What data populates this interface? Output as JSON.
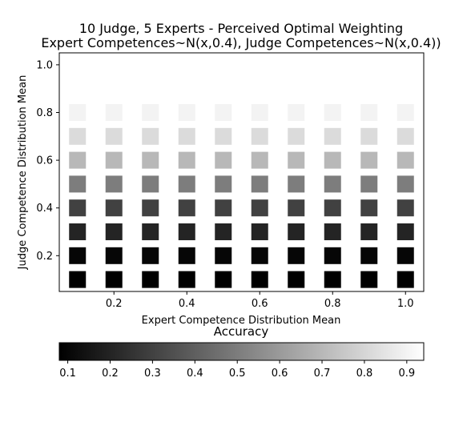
{
  "chart_data": {
    "type": "heatmap",
    "title": [
      "10 Judge, 5 Experts - Perceived Optimal Weighting",
      "Expert Competences~N(x,0.4), Judge Competences~N(x,0.4))"
    ],
    "xlabel": "Expert Competence Distribution Mean",
    "ylabel": "Judge Competence Distribution Mean",
    "x": [
      0.1,
      0.2,
      0.3,
      0.4,
      0.5,
      0.6,
      0.7,
      0.8,
      0.9,
      1.0
    ],
    "y": [
      0.1,
      0.2,
      0.3,
      0.4,
      0.5,
      0.6,
      0.7,
      0.8,
      0.9,
      1.0
    ],
    "xlim": [
      0.05,
      1.05
    ],
    "ylim": [
      0.05,
      1.05
    ],
    "xticks": [
      "0.2",
      "0.4",
      "0.6",
      "0.8",
      "1.0"
    ],
    "yticks": [
      "0.2",
      "0.4",
      "0.6",
      "0.8",
      "1.0"
    ],
    "values": [
      [
        0.05,
        0.05,
        0.05,
        0.05,
        0.05,
        0.05,
        0.05,
        0.05,
        0.05,
        0.05
      ],
      [
        0.1,
        0.1,
        0.1,
        0.1,
        0.1,
        0.1,
        0.1,
        0.1,
        0.1,
        0.1
      ],
      [
        0.2,
        0.2,
        0.2,
        0.2,
        0.2,
        0.2,
        0.2,
        0.2,
        0.2,
        0.2
      ],
      [
        0.3,
        0.3,
        0.3,
        0.3,
        0.3,
        0.3,
        0.3,
        0.3,
        0.3,
        0.3
      ],
      [
        0.5,
        0.5,
        0.5,
        0.5,
        0.5,
        0.5,
        0.5,
        0.5,
        0.5,
        0.5
      ],
      [
        0.7,
        0.7,
        0.7,
        0.7,
        0.7,
        0.7,
        0.7,
        0.7,
        0.7,
        0.7
      ],
      [
        0.82,
        0.82,
        0.82,
        0.82,
        0.82,
        0.82,
        0.82,
        0.82,
        0.82,
        0.82
      ],
      [
        0.9,
        0.9,
        0.9,
        0.9,
        0.9,
        0.9,
        0.9,
        0.9,
        0.9,
        0.9
      ],
      [
        0.95,
        0.95,
        0.95,
        0.95,
        0.95,
        0.95,
        0.95,
        0.95,
        0.95,
        0.95
      ],
      [
        0.98,
        0.98,
        0.98,
        0.98,
        0.98,
        0.98,
        0.98,
        0.98,
        0.98,
        0.98
      ]
    ],
    "colorbar": {
      "label": "Accuracy",
      "range": [
        0.08,
        0.94
      ],
      "ticks": [
        "0.1",
        "0.2",
        "0.3",
        "0.4",
        "0.5",
        "0.6",
        "0.7",
        "0.8",
        "0.9"
      ],
      "colormap": "gray",
      "orientation": "horizontal"
    },
    "marker": "square",
    "grid": false
  }
}
